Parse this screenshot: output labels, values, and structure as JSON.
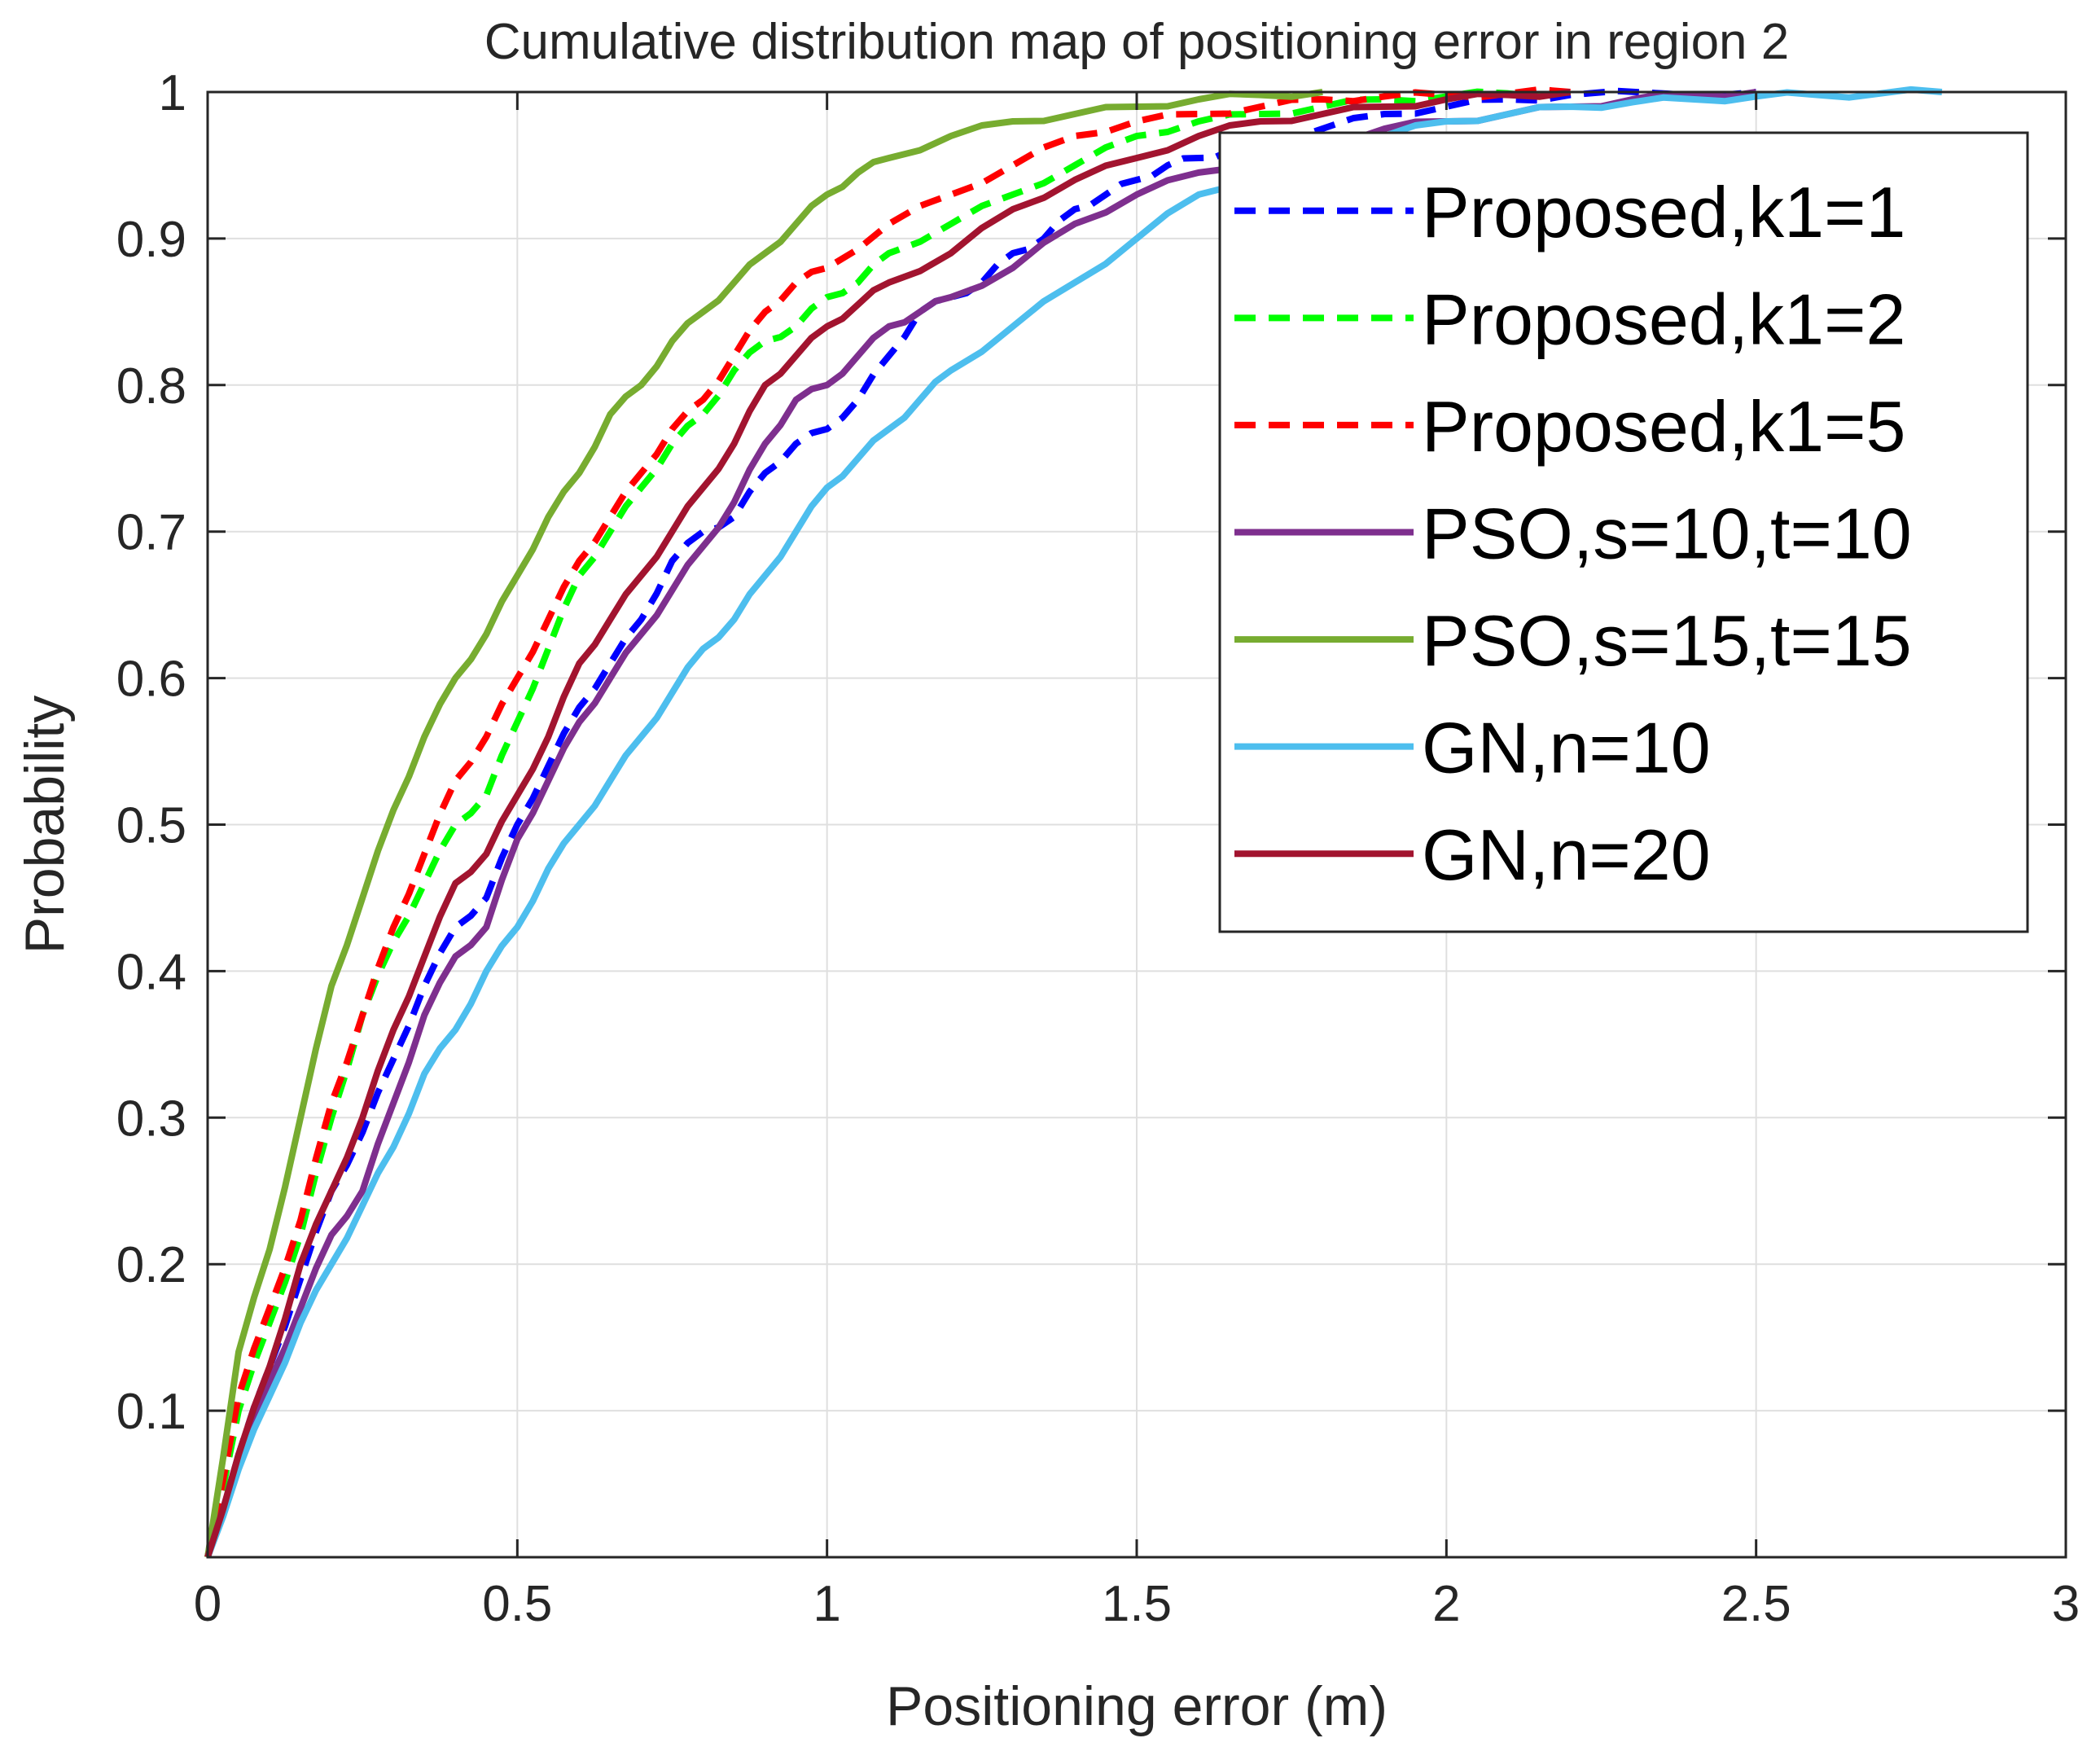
{
  "chart_data": {
    "type": "line",
    "title": "Cumulative distribution map of positioning error in region 2",
    "xlabel": "Positioning error (m)",
    "ylabel": "Probability",
    "xlim": [
      0,
      3
    ],
    "ylim": [
      0,
      1
    ],
    "grid": true,
    "legend_position": "top-right",
    "x_ticks": [
      {
        "value": 0,
        "label": "0"
      },
      {
        "value": 0.5,
        "label": "0.5"
      },
      {
        "value": 1,
        "label": "1"
      },
      {
        "value": 1.5,
        "label": "1.5"
      },
      {
        "value": 2,
        "label": "2"
      },
      {
        "value": 2.5,
        "label": "2.5"
      },
      {
        "value": 3,
        "label": "3"
      }
    ],
    "y_ticks": [
      {
        "value": 0.1,
        "label": "0.1"
      },
      {
        "value": 0.2,
        "label": "0.2"
      },
      {
        "value": 0.3,
        "label": "0.3"
      },
      {
        "value": 0.4,
        "label": "0.4"
      },
      {
        "value": 0.5,
        "label": "0.5"
      },
      {
        "value": 0.6,
        "label": "0.6"
      },
      {
        "value": 0.7,
        "label": "0.7"
      },
      {
        "value": 0.8,
        "label": "0.8"
      },
      {
        "value": 0.9,
        "label": "0.9"
      },
      {
        "value": 1,
        "label": "1"
      }
    ],
    "series": [
      {
        "name": "Proposed,k1=1",
        "color": "#0000ff",
        "style": "dashed",
        "x": [
          0,
          0.05,
          0.1,
          0.15,
          0.2,
          0.25,
          0.3,
          0.35,
          0.4,
          0.45,
          0.5,
          0.55,
          0.6,
          0.65,
          0.7,
          0.75,
          0.8,
          0.85,
          0.9,
          0.95,
          1.0,
          1.05,
          1.1,
          1.15,
          1.2,
          1.25,
          1.3,
          1.35,
          1.4,
          1.45,
          1.5,
          1.55,
          1.6,
          1.65,
          1.7,
          1.8,
          1.9,
          2.0,
          2.1,
          2.2,
          2.35,
          2.5
        ],
        "values": [
          0,
          0.07,
          0.13,
          0.19,
          0.25,
          0.29,
          0.34,
          0.39,
          0.43,
          0.45,
          0.5,
          0.54,
          0.58,
          0.61,
          0.64,
          0.68,
          0.7,
          0.71,
          0.74,
          0.76,
          0.77,
          0.79,
          0.82,
          0.85,
          0.86,
          0.87,
          0.89,
          0.9,
          0.92,
          0.93,
          0.94,
          0.95,
          0.955,
          0.96,
          0.965,
          0.975,
          0.985,
          0.99,
          0.995,
          0.998,
          0.999,
          1.0
        ]
      },
      {
        "name": "Proposed,k1=2",
        "color": "#00ff00",
        "style": "dashed",
        "x": [
          0,
          0.05,
          0.1,
          0.15,
          0.2,
          0.25,
          0.3,
          0.35,
          0.4,
          0.45,
          0.5,
          0.55,
          0.6,
          0.65,
          0.7,
          0.75,
          0.8,
          0.85,
          0.9,
          0.95,
          1.0,
          1.05,
          1.1,
          1.2,
          1.3,
          1.4,
          1.5,
          1.6,
          1.7,
          1.8,
          1.9,
          2.0,
          2.1,
          2.2
        ],
        "values": [
          0,
          0.1,
          0.16,
          0.22,
          0.3,
          0.37,
          0.42,
          0.46,
          0.5,
          0.52,
          0.57,
          0.62,
          0.67,
          0.7,
          0.73,
          0.76,
          0.78,
          0.81,
          0.83,
          0.84,
          0.86,
          0.87,
          0.89,
          0.91,
          0.93,
          0.95,
          0.97,
          0.98,
          0.985,
          0.99,
          0.995,
          0.997,
          0.999,
          1.0
        ]
      },
      {
        "name": "Proposed,k1=5",
        "color": "#ff0000",
        "style": "dashed",
        "x": [
          0,
          0.05,
          0.1,
          0.15,
          0.2,
          0.25,
          0.3,
          0.35,
          0.4,
          0.45,
          0.5,
          0.55,
          0.6,
          0.65,
          0.7,
          0.75,
          0.8,
          0.85,
          0.9,
          0.95,
          1.0,
          1.1,
          1.2,
          1.3,
          1.4,
          1.5,
          1.6,
          1.7,
          1.8,
          1.9,
          2.0,
          2.1,
          2.2
        ],
        "values": [
          0,
          0.11,
          0.17,
          0.23,
          0.31,
          0.37,
          0.43,
          0.48,
          0.53,
          0.56,
          0.6,
          0.64,
          0.68,
          0.71,
          0.74,
          0.77,
          0.79,
          0.82,
          0.85,
          0.87,
          0.88,
          0.91,
          0.93,
          0.95,
          0.97,
          0.98,
          0.985,
          0.99,
          0.995,
          0.997,
          0.998,
          0.999,
          1.0
        ]
      },
      {
        "name": "PSO,s=10,t=10",
        "color": "#7e2f8e",
        "style": "solid",
        "x": [
          0,
          0.05,
          0.1,
          0.15,
          0.2,
          0.25,
          0.3,
          0.35,
          0.4,
          0.45,
          0.5,
          0.55,
          0.6,
          0.65,
          0.7,
          0.75,
          0.8,
          0.85,
          0.9,
          0.95,
          1.0,
          1.05,
          1.1,
          1.15,
          1.2,
          1.3,
          1.4,
          1.5,
          1.6,
          1.7,
          1.8,
          1.9,
          2.0,
          2.1,
          2.2,
          2.3,
          2.4,
          2.5
        ],
        "values": [
          0,
          0.07,
          0.12,
          0.17,
          0.22,
          0.25,
          0.31,
          0.37,
          0.41,
          0.43,
          0.49,
          0.53,
          0.57,
          0.6,
          0.63,
          0.66,
          0.69,
          0.72,
          0.76,
          0.79,
          0.8,
          0.82,
          0.84,
          0.85,
          0.86,
          0.88,
          0.91,
          0.93,
          0.945,
          0.955,
          0.965,
          0.975,
          0.98,
          0.985,
          0.99,
          0.995,
          0.998,
          1.0
        ]
      },
      {
        "name": "PSO,s=15,t=15",
        "color": "#77ac30",
        "style": "solid",
        "x": [
          0,
          0.05,
          0.1,
          0.15,
          0.2,
          0.25,
          0.3,
          0.35,
          0.4,
          0.45,
          0.5,
          0.55,
          0.6,
          0.65,
          0.7,
          0.75,
          0.8,
          0.85,
          0.9,
          0.95,
          1.0,
          1.05,
          1.1,
          1.2,
          1.3,
          1.4,
          1.5,
          1.6,
          1.7,
          1.8
        ],
        "values": [
          0,
          0.14,
          0.21,
          0.3,
          0.39,
          0.45,
          0.51,
          0.56,
          0.6,
          0.63,
          0.67,
          0.71,
          0.74,
          0.78,
          0.8,
          0.83,
          0.85,
          0.87,
          0.89,
          0.91,
          0.93,
          0.945,
          0.955,
          0.97,
          0.98,
          0.985,
          0.99,
          0.995,
          0.998,
          1.0
        ]
      },
      {
        "name": "GN,n=10",
        "color": "#4dbeee",
        "style": "solid",
        "x": [
          0,
          0.05,
          0.1,
          0.15,
          0.2,
          0.25,
          0.3,
          0.35,
          0.4,
          0.45,
          0.5,
          0.55,
          0.6,
          0.65,
          0.7,
          0.75,
          0.8,
          0.85,
          0.9,
          0.95,
          1.0,
          1.05,
          1.1,
          1.15,
          1.2,
          1.3,
          1.4,
          1.5,
          1.6,
          1.7,
          1.8,
          1.9,
          2.0,
          2.1,
          2.2,
          2.3,
          2.4,
          2.5,
          2.6,
          2.7,
          2.8
        ],
        "values": [
          0,
          0.06,
          0.11,
          0.16,
          0.2,
          0.24,
          0.28,
          0.33,
          0.36,
          0.4,
          0.43,
          0.47,
          0.5,
          0.53,
          0.56,
          0.59,
          0.62,
          0.64,
          0.67,
          0.7,
          0.73,
          0.75,
          0.77,
          0.79,
          0.81,
          0.84,
          0.87,
          0.9,
          0.93,
          0.945,
          0.96,
          0.97,
          0.98,
          0.985,
          0.99,
          0.993,
          0.995,
          0.997,
          0.998,
          0.999,
          1.0
        ]
      },
      {
        "name": "GN,n=20",
        "color": "#a2142f",
        "style": "solid",
        "x": [
          0,
          0.05,
          0.1,
          0.15,
          0.2,
          0.25,
          0.3,
          0.35,
          0.4,
          0.45,
          0.5,
          0.55,
          0.6,
          0.65,
          0.7,
          0.75,
          0.8,
          0.85,
          0.9,
          0.95,
          1.0,
          1.05,
          1.1,
          1.2,
          1.3,
          1.4,
          1.5,
          1.6,
          1.7,
          1.8,
          1.9,
          2.0,
          2.1,
          2.2
        ],
        "values": [
          0,
          0.07,
          0.13,
          0.2,
          0.25,
          0.3,
          0.36,
          0.41,
          0.46,
          0.48,
          0.52,
          0.56,
          0.61,
          0.64,
          0.67,
          0.7,
          0.73,
          0.76,
          0.8,
          0.82,
          0.84,
          0.855,
          0.87,
          0.89,
          0.92,
          0.94,
          0.955,
          0.97,
          0.98,
          0.985,
          0.99,
          0.995,
          0.998,
          1.0
        ]
      }
    ]
  }
}
